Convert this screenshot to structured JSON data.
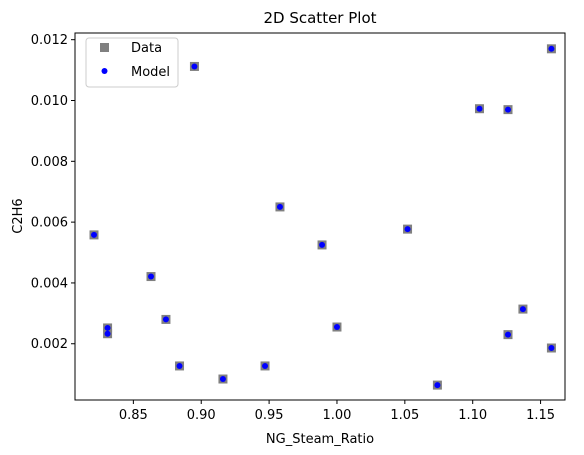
{
  "chart_data": {
    "type": "scatter",
    "title": "2D Scatter Plot",
    "xlabel": "NG_Steam_Ratio",
    "ylabel": "C2H6",
    "xlim": [
      0.807,
      1.168
    ],
    "ylim": [
      0.00015,
      0.01222
    ],
    "x_ticks": [
      0.85,
      0.9,
      0.95,
      1.0,
      1.05,
      1.1,
      1.15
    ],
    "x_tick_labels": [
      "0.85",
      "0.90",
      "0.95",
      "1.00",
      "1.05",
      "1.10",
      "1.15"
    ],
    "y_ticks": [
      0.002,
      0.004,
      0.006,
      0.008,
      0.01,
      0.012
    ],
    "y_tick_labels": [
      "0.002",
      "0.004",
      "0.006",
      "0.008",
      "0.010",
      "0.012"
    ],
    "grid": false,
    "legend_position": "top-left",
    "series": [
      {
        "name": "Data",
        "marker": "square",
        "color": "#808080",
        "points": [
          {
            "x": 0.821,
            "y": 0.00558
          },
          {
            "x": 0.831,
            "y": 0.00252
          },
          {
            "x": 0.831,
            "y": 0.00233
          },
          {
            "x": 0.863,
            "y": 0.00421
          },
          {
            "x": 0.874,
            "y": 0.0028
          },
          {
            "x": 0.884,
            "y": 0.00127
          },
          {
            "x": 0.895,
            "y": 0.01112
          },
          {
            "x": 0.916,
            "y": 0.00084
          },
          {
            "x": 0.947,
            "y": 0.00127
          },
          {
            "x": 0.958,
            "y": 0.0065
          },
          {
            "x": 0.989,
            "y": 0.00525
          },
          {
            "x": 1.0,
            "y": 0.00255
          },
          {
            "x": 1.052,
            "y": 0.00577
          },
          {
            "x": 1.074,
            "y": 0.00064
          },
          {
            "x": 1.105,
            "y": 0.00973
          },
          {
            "x": 1.126,
            "y": 0.0097
          },
          {
            "x": 1.126,
            "y": 0.0023
          },
          {
            "x": 1.137,
            "y": 0.00314
          },
          {
            "x": 1.158,
            "y": 0.0117
          },
          {
            "x": 1.158,
            "y": 0.00186
          }
        ]
      },
      {
        "name": "Model",
        "marker": "circle",
        "color": "#0000ff",
        "points": [
          {
            "x": 0.821,
            "y": 0.00558
          },
          {
            "x": 0.831,
            "y": 0.00252
          },
          {
            "x": 0.831,
            "y": 0.00233
          },
          {
            "x": 0.863,
            "y": 0.00421
          },
          {
            "x": 0.874,
            "y": 0.0028
          },
          {
            "x": 0.884,
            "y": 0.00127
          },
          {
            "x": 0.895,
            "y": 0.01112
          },
          {
            "x": 0.916,
            "y": 0.00084
          },
          {
            "x": 0.947,
            "y": 0.00127
          },
          {
            "x": 0.958,
            "y": 0.0065
          },
          {
            "x": 0.989,
            "y": 0.00525
          },
          {
            "x": 1.0,
            "y": 0.00255
          },
          {
            "x": 1.052,
            "y": 0.00577
          },
          {
            "x": 1.074,
            "y": 0.00064
          },
          {
            "x": 1.105,
            "y": 0.00973
          },
          {
            "x": 1.126,
            "y": 0.0097
          },
          {
            "x": 1.126,
            "y": 0.0023
          },
          {
            "x": 1.137,
            "y": 0.00314
          },
          {
            "x": 1.158,
            "y": 0.0117
          },
          {
            "x": 1.158,
            "y": 0.00186
          }
        ]
      }
    ]
  }
}
